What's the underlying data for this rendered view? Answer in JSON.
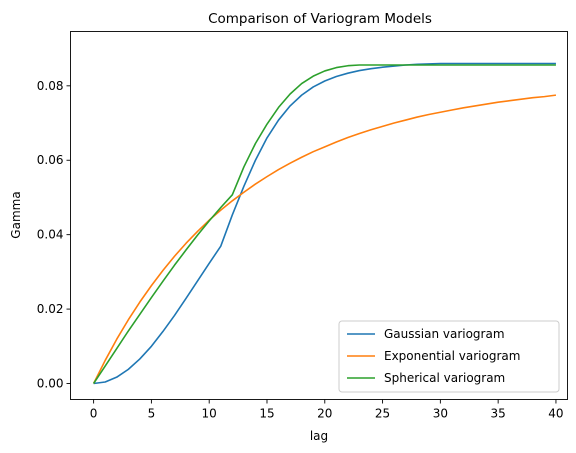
{
  "chart_data": {
    "type": "line",
    "title": "Comparison of Variogram Models",
    "xlabel": "lag",
    "ylabel": "Gamma",
    "xlim": [
      -2,
      41
    ],
    "ylim": [
      -0.0043,
      0.0946
    ],
    "xticks": [
      0,
      5,
      10,
      15,
      20,
      25,
      30,
      35,
      40
    ],
    "yticks": [
      0.0,
      0.02,
      0.04,
      0.06,
      0.08
    ],
    "ytick_labels": [
      "0.00",
      "0.02",
      "0.04",
      "0.06",
      "0.08"
    ],
    "grid": false,
    "legend_position": "lower-right",
    "x": [
      0,
      1,
      2,
      3,
      4,
      5,
      6,
      7,
      8,
      9,
      10,
      11,
      12,
      13,
      14,
      15,
      16,
      17,
      18,
      19,
      20,
      21,
      22,
      23,
      24,
      25,
      26,
      27,
      28,
      29,
      30,
      31,
      32,
      33,
      34,
      35,
      36,
      37,
      38,
      39,
      40
    ],
    "series": [
      {
        "name": "Gaussian variogram",
        "color": "#1f77b4",
        "values": [
          0.0,
          0.0004,
          0.0017,
          0.0038,
          0.0066,
          0.01,
          0.014,
          0.0183,
          0.0229,
          0.0276,
          0.0323,
          0.0369,
          0.0453,
          0.053,
          0.06,
          0.066,
          0.0708,
          0.0746,
          0.0775,
          0.0797,
          0.0813,
          0.0825,
          0.0834,
          0.0841,
          0.0846,
          0.085,
          0.0853,
          0.0856,
          0.0858,
          0.0859,
          0.086,
          0.086,
          0.086,
          0.086,
          0.086,
          0.086,
          0.086,
          0.086,
          0.086,
          0.086,
          0.086
        ]
      },
      {
        "name": "Exponential variogram",
        "color": "#ff7f0e",
        "values": [
          0.0,
          0.0062,
          0.0119,
          0.0171,
          0.0219,
          0.0263,
          0.0304,
          0.0342,
          0.0377,
          0.0409,
          0.0439,
          0.0466,
          0.0491,
          0.0514,
          0.0536,
          0.0556,
          0.0575,
          0.0592,
          0.0608,
          0.0623,
          0.0636,
          0.0649,
          0.0661,
          0.0672,
          0.0682,
          0.0691,
          0.07,
          0.0708,
          0.0716,
          0.0723,
          0.0729,
          0.0735,
          0.0741,
          0.0746,
          0.0751,
          0.0756,
          0.076,
          0.0764,
          0.0768,
          0.0771,
          0.0775
        ]
      },
      {
        "name": "Spherical variogram",
        "color": "#2ca02c",
        "values": [
          0.0,
          0.0047,
          0.0094,
          0.0141,
          0.0186,
          0.0231,
          0.0275,
          0.0318,
          0.0359,
          0.0399,
          0.0437,
          0.0473,
          0.0507,
          0.0582,
          0.0645,
          0.0697,
          0.0742,
          0.0778,
          0.0806,
          0.0826,
          0.084,
          0.0849,
          0.0854,
          0.0856,
          0.0856,
          0.0856,
          0.0856,
          0.0856,
          0.0856,
          0.0856,
          0.0856,
          0.0856,
          0.0856,
          0.0856,
          0.0856,
          0.0856,
          0.0856,
          0.0856,
          0.0856,
          0.0856,
          0.0856
        ]
      }
    ]
  }
}
